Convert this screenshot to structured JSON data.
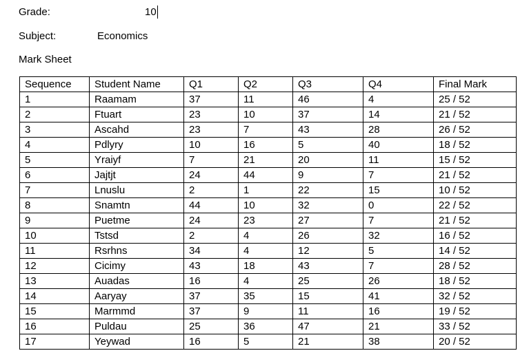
{
  "header": {
    "grade_label": "Grade:",
    "grade_value": "10",
    "subject_label": "Subject:",
    "subject_value": "Economics",
    "sheet_title": "Mark Sheet"
  },
  "table": {
    "columns": [
      "Sequence",
      "Student Name",
      "Q1",
      "Q2",
      "Q3",
      "Q4",
      "Final Mark"
    ],
    "rows": [
      [
        "1",
        "Raamam",
        "37",
        "11",
        "46",
        "4",
        "25 / 52"
      ],
      [
        "2",
        "Ftuart",
        "23",
        "10",
        "37",
        "14",
        "21 / 52"
      ],
      [
        "3",
        "Ascahd",
        "23",
        "7",
        "43",
        "28",
        "26 / 52"
      ],
      [
        "4",
        "Pdlyry",
        "10",
        "16",
        "5",
        "40",
        "18 / 52"
      ],
      [
        "5",
        "Yraiyf",
        "7",
        "21",
        "20",
        "11",
        "15 / 52"
      ],
      [
        "6",
        "Jajtjt",
        "24",
        "44",
        "9",
        "7",
        "21 / 52"
      ],
      [
        "7",
        "Lnuslu",
        "2",
        "1",
        "22",
        "15",
        "10 / 52"
      ],
      [
        "8",
        "Snamtn",
        "44",
        "10",
        "32",
        "0",
        "22 / 52"
      ],
      [
        "9",
        "Puetme",
        "24",
        "23",
        "27",
        "7",
        "21 / 52"
      ],
      [
        "10",
        "Tstsd",
        "2",
        "4",
        "26",
        "32",
        "16 / 52"
      ],
      [
        "11",
        "Rsrhns",
        "34",
        "4",
        "12",
        "5",
        "14 / 52"
      ],
      [
        "12",
        "Cicimy",
        "43",
        "18",
        "43",
        "7",
        "28 / 52"
      ],
      [
        "13",
        "Auadas",
        "16",
        "4",
        "25",
        "26",
        "18 / 52"
      ],
      [
        "14",
        "Aaryay",
        "37",
        "35",
        "15",
        "41",
        "32 / 52"
      ],
      [
        "15",
        "Marmmd",
        "37",
        "9",
        "11",
        "16",
        "19 / 52"
      ],
      [
        "16",
        "Puldau",
        "25",
        "36",
        "47",
        "21",
        "33 / 52"
      ],
      [
        "17",
        "Yeywad",
        "16",
        "5",
        "21",
        "38",
        "20 / 52"
      ]
    ]
  }
}
